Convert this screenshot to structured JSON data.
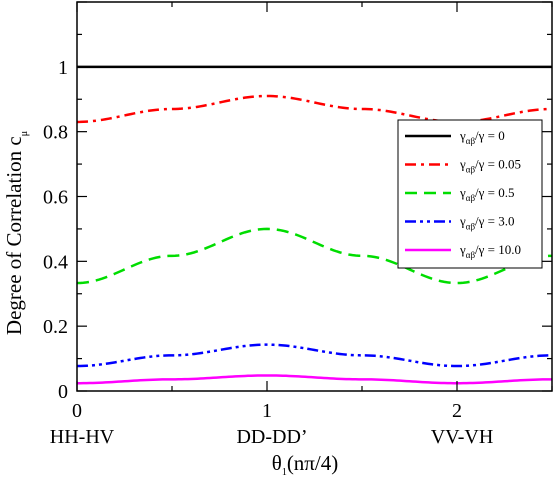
{
  "chart_data": {
    "type": "line",
    "xlabel": "θ",
    "xlabel_sub": "1",
    "xlabel_suffix": "(nπ/4)",
    "ylabel": "Degree of Correlation c",
    "ylabel_sub": "μ",
    "xlim": [
      0,
      2.5
    ],
    "ylim": [
      0,
      1.2
    ],
    "x_ticks": [
      "0",
      "1",
      "2"
    ],
    "y_ticks": [
      "0",
      "0.2",
      "0.4",
      "0.6",
      "0.8",
      "1"
    ],
    "x_category_labels": [
      "HH-HV",
      "DD-DD’",
      "VV-VH"
    ],
    "grid": false,
    "legend_position": "right",
    "legend_prefix": "γ",
    "legend_prefix_sub": "αβ",
    "series": [
      {
        "name": "/γ = 0",
        "color": "#000000",
        "dash": "solid",
        "x": [
          0,
          0.5,
          1.0,
          1.5,
          2.0,
          2.5
        ],
        "y": [
          1.0,
          1.0,
          1.0,
          1.0,
          1.0,
          1.0
        ]
      },
      {
        "name": "/γ = 0.05",
        "color": "#ff0000",
        "dash": "dashdot",
        "x": [
          0,
          0.5,
          1.0,
          1.5,
          2.0,
          2.5
        ],
        "y": [
          0.83,
          0.87,
          0.91,
          0.87,
          0.83,
          0.87
        ]
      },
      {
        "name": "/γ = 0.5",
        "color": "#00dd00",
        "dash": "dashed",
        "x": [
          0,
          0.5,
          1.0,
          1.5,
          2.0,
          2.5
        ],
        "y": [
          0.333,
          0.417,
          0.5,
          0.417,
          0.333,
          0.417
        ]
      },
      {
        "name": "/γ = 3.0",
        "color": "#0000ff",
        "dash": "dashdotdot",
        "x": [
          0,
          0.5,
          1.0,
          1.5,
          2.0,
          2.5
        ],
        "y": [
          0.077,
          0.11,
          0.143,
          0.11,
          0.077,
          0.11
        ]
      },
      {
        "name": "/γ = 10.0",
        "color": "#ff00ff",
        "dash": "solid",
        "x": [
          0,
          0.5,
          1.0,
          1.5,
          2.0,
          2.5
        ],
        "y": [
          0.024,
          0.036,
          0.048,
          0.036,
          0.024,
          0.036
        ]
      }
    ]
  }
}
